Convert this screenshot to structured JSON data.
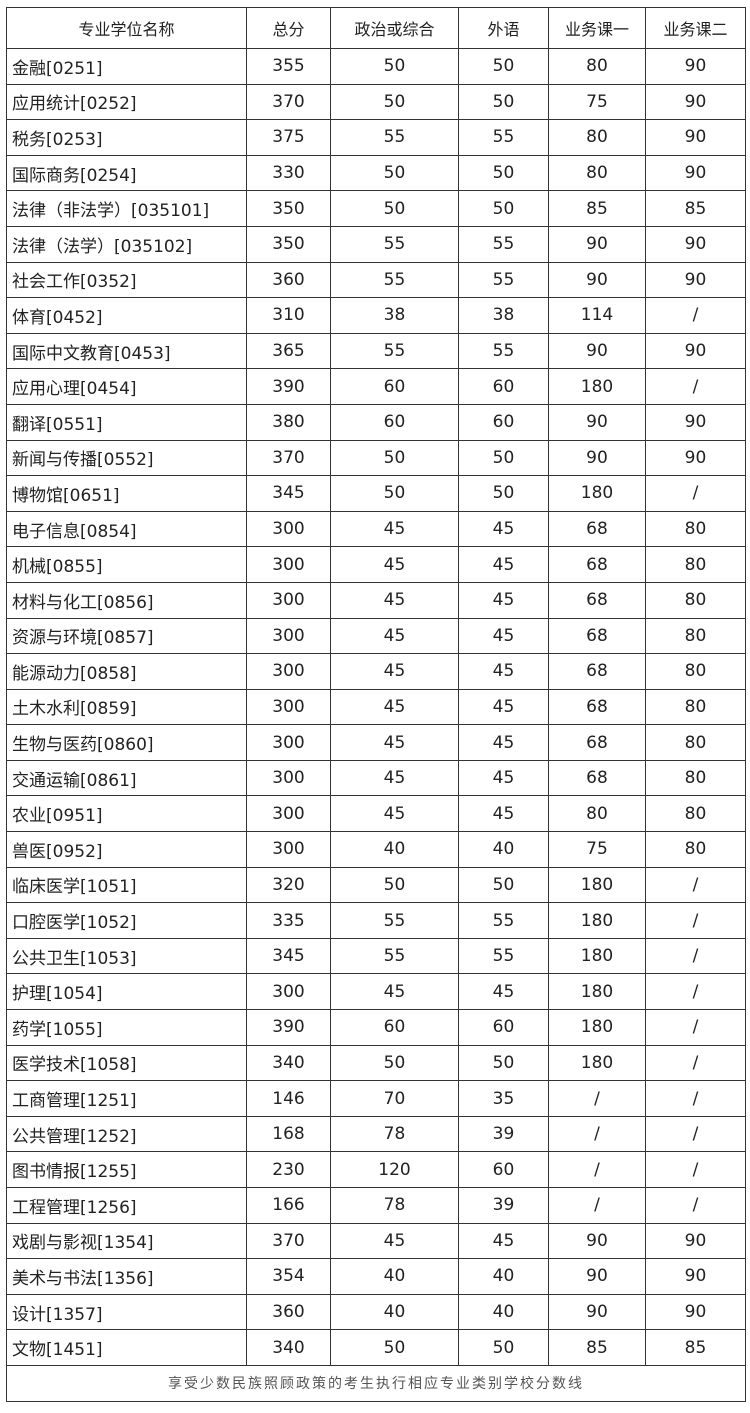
{
  "table": {
    "headers": [
      "专业学位名称",
      "总分",
      "政治或综合",
      "外语",
      "业务课一",
      "业务课二"
    ],
    "rows": [
      [
        "金融[0251]",
        "355",
        "50",
        "50",
        "80",
        "90"
      ],
      [
        "应用统计[0252]",
        "370",
        "50",
        "50",
        "75",
        "90"
      ],
      [
        "税务[0253]",
        "375",
        "55",
        "55",
        "80",
        "90"
      ],
      [
        "国际商务[0254]",
        "330",
        "50",
        "50",
        "80",
        "90"
      ],
      [
        "法律（非法学）[035101]",
        "350",
        "50",
        "50",
        "85",
        "85"
      ],
      [
        "法律（法学）[035102]",
        "350",
        "55",
        "55",
        "90",
        "90"
      ],
      [
        "社会工作[0352]",
        "360",
        "55",
        "55",
        "90",
        "90"
      ],
      [
        "体育[0452]",
        "310",
        "38",
        "38",
        "114",
        "/"
      ],
      [
        "国际中文教育[0453]",
        "365",
        "55",
        "55",
        "90",
        "90"
      ],
      [
        "应用心理[0454]",
        "390",
        "60",
        "60",
        "180",
        "/"
      ],
      [
        "翻译[0551]",
        "380",
        "60",
        "60",
        "90",
        "90"
      ],
      [
        "新闻与传播[0552]",
        "370",
        "50",
        "50",
        "90",
        "90"
      ],
      [
        "博物馆[0651]",
        "345",
        "50",
        "50",
        "180",
        "/"
      ],
      [
        "电子信息[0854]",
        "300",
        "45",
        "45",
        "68",
        "80"
      ],
      [
        "机械[0855]",
        "300",
        "45",
        "45",
        "68",
        "80"
      ],
      [
        "材料与化工[0856]",
        "300",
        "45",
        "45",
        "68",
        "80"
      ],
      [
        "资源与环境[0857]",
        "300",
        "45",
        "45",
        "68",
        "80"
      ],
      [
        "能源动力[0858]",
        "300",
        "45",
        "45",
        "68",
        "80"
      ],
      [
        "土木水利[0859]",
        "300",
        "45",
        "45",
        "68",
        "80"
      ],
      [
        "生物与医药[0860]",
        "300",
        "45",
        "45",
        "68",
        "80"
      ],
      [
        "交通运输[0861]",
        "300",
        "45",
        "45",
        "68",
        "80"
      ],
      [
        "农业[0951]",
        "300",
        "45",
        "45",
        "80",
        "80"
      ],
      [
        "兽医[0952]",
        "300",
        "40",
        "40",
        "75",
        "80"
      ],
      [
        "临床医学[1051]",
        "320",
        "50",
        "50",
        "180",
        "/"
      ],
      [
        "口腔医学[1052]",
        "335",
        "55",
        "55",
        "180",
        "/"
      ],
      [
        "公共卫生[1053]",
        "345",
        "55",
        "55",
        "180",
        "/"
      ],
      [
        "护理[1054]",
        "300",
        "45",
        "45",
        "180",
        "/"
      ],
      [
        "药学[1055]",
        "390",
        "60",
        "60",
        "180",
        "/"
      ],
      [
        "医学技术[1058]",
        "340",
        "50",
        "50",
        "180",
        "/"
      ],
      [
        "工商管理[1251]",
        "146",
        "70",
        "35",
        "/",
        "/"
      ],
      [
        "公共管理[1252]",
        "168",
        "78",
        "39",
        "/",
        "/"
      ],
      [
        "图书情报[1255]",
        "230",
        "120",
        "60",
        "/",
        "/"
      ],
      [
        "工程管理[1256]",
        "166",
        "78",
        "39",
        "/",
        "/"
      ],
      [
        "戏剧与影视[1354]",
        "370",
        "45",
        "45",
        "90",
        "90"
      ],
      [
        "美术与书法[1356]",
        "354",
        "40",
        "40",
        "90",
        "90"
      ],
      [
        "设计[1357]",
        "360",
        "40",
        "40",
        "90",
        "90"
      ],
      [
        "文物[1451]",
        "340",
        "50",
        "50",
        "85",
        "85"
      ]
    ],
    "footnote": "享受少数民族照顾政策的考生执行相应专业类别学校分数线"
  }
}
